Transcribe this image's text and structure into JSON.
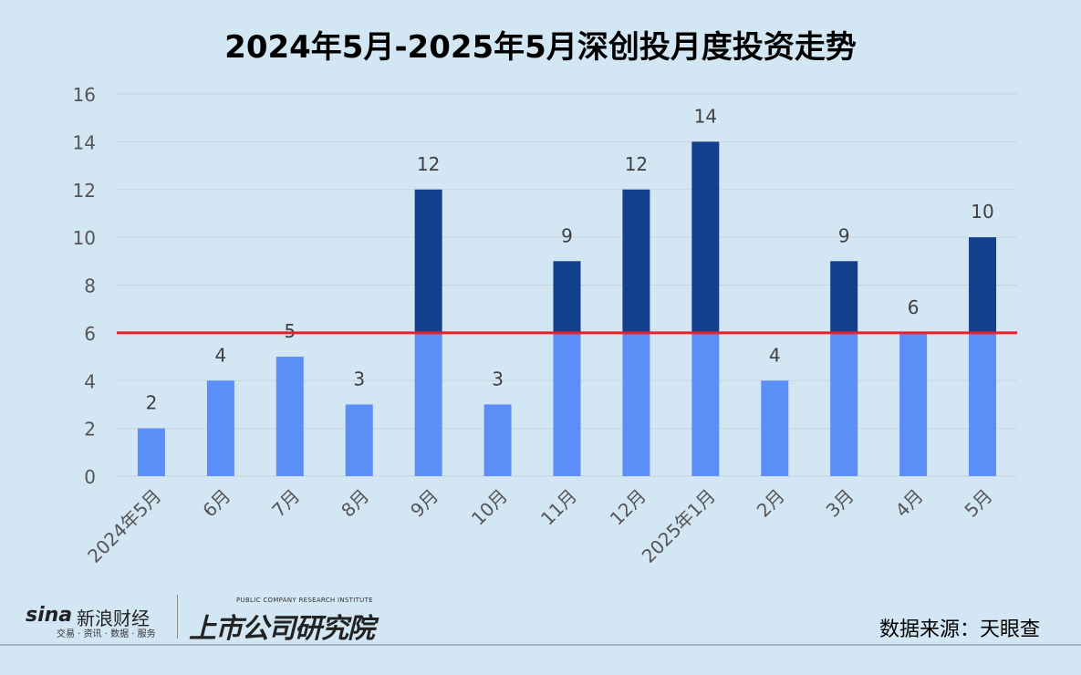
{
  "chart_data": {
    "type": "bar",
    "title": "2024年5月-2025年5月深创投月度投资走势",
    "categories": [
      "2024年5月",
      "6月",
      "7月",
      "8月",
      "9月",
      "10月",
      "11月",
      "12月",
      "2025年1月",
      "2月",
      "3月",
      "4月",
      "5月"
    ],
    "values": [
      2,
      4,
      5,
      3,
      12,
      3,
      9,
      12,
      14,
      4,
      9,
      6,
      10
    ],
    "reference_line": 6,
    "ylim": [
      0,
      16
    ],
    "yticks": [
      0,
      2,
      4,
      6,
      8,
      10,
      12,
      14,
      16
    ],
    "grid": true,
    "xlabel": "",
    "ylabel": "",
    "colors": {
      "below_reference": "#5b8ff7",
      "above_reference": "#12408c",
      "reference_line": "#e8202a",
      "background": "#d3e6f4"
    }
  },
  "footer": {
    "sina_word": "sina",
    "sina_name": "新浪财经",
    "sina_tagline": "交易 · 资讯 · 数据 · 服务",
    "institute_en": "PUBLIC COMPANY RESEARCH INSTITUTE",
    "institute_cn": "上市公司研究院",
    "source": "数据来源：天眼查"
  }
}
